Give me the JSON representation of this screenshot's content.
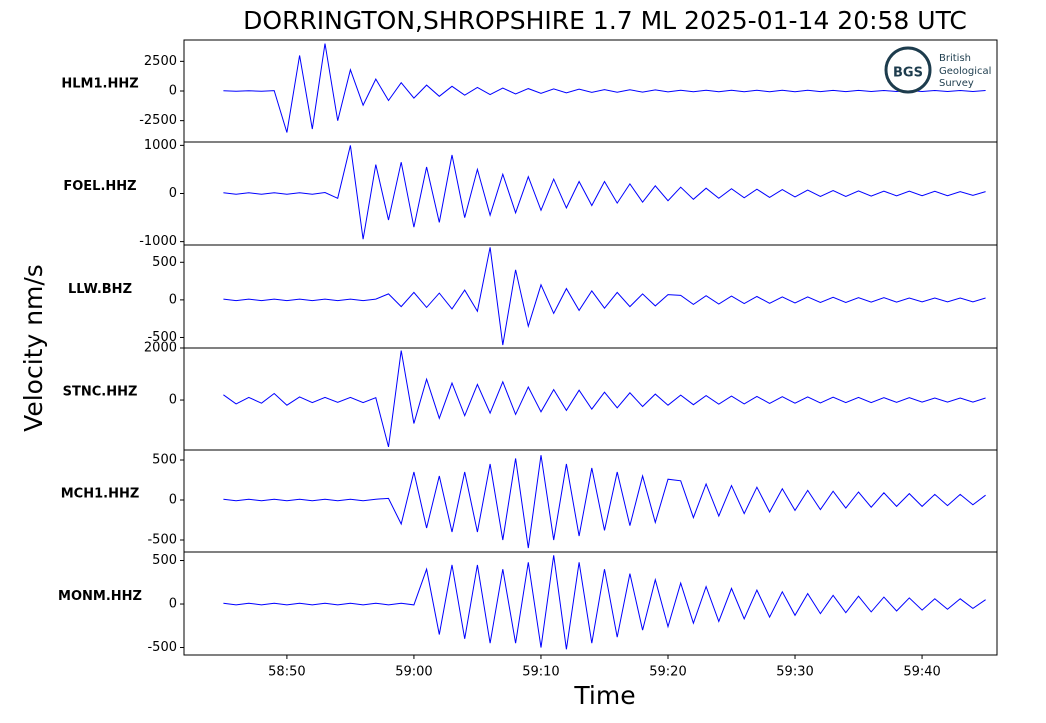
{
  "title": "DORRINGTON,SHROPSHIRE 1.7 ML   2025-01-14 20:58 UTC",
  "ylabel": "Velocity nm/s",
  "xlabel": "Time",
  "logo": {
    "abbr": "BGS",
    "lines": [
      "British",
      "Geological",
      "Survey"
    ]
  },
  "chart_data": [
    {
      "type": "line",
      "name": "HLM1.HHZ",
      "color": "#0000ff",
      "xlim": [
        41.9,
        105.9
      ],
      "ylim": [
        -4300,
        4300
      ],
      "yticks": [
        -2500,
        0,
        2500
      ],
      "x": [
        45,
        46,
        47,
        48,
        49,
        50,
        51,
        52,
        53,
        54,
        55,
        56,
        57,
        58,
        59,
        60,
        61,
        62,
        63,
        64,
        65,
        66,
        67,
        68,
        69,
        70,
        71,
        72,
        73,
        74,
        75,
        76,
        77,
        78,
        79,
        80,
        81,
        82,
        83,
        84,
        85,
        86,
        87,
        88,
        89,
        90,
        91,
        92,
        93,
        94,
        95,
        96,
        97,
        98,
        99,
        100,
        101,
        102,
        103,
        104,
        105
      ],
      "values": [
        20,
        -20,
        20,
        -20,
        30,
        -3500,
        3000,
        -3200,
        4000,
        -2500,
        1800,
        -1200,
        1000,
        -800,
        700,
        -600,
        500,
        -450,
        400,
        -350,
        300,
        -300,
        250,
        -250,
        200,
        -200,
        180,
        -150,
        150,
        -120,
        120,
        -100,
        100,
        -90,
        90,
        -80,
        70,
        -70,
        70,
        -65,
        65,
        -60,
        60,
        -60,
        55,
        -55,
        55,
        -50,
        50,
        -50,
        50,
        -45,
        45,
        -45,
        45,
        -40,
        40,
        -40,
        40,
        -40,
        40
      ]
    },
    {
      "type": "line",
      "name": "FOEL.HHZ",
      "color": "#0000ff",
      "xlim": [
        41.9,
        105.9
      ],
      "ylim": [
        -1070,
        1070
      ],
      "yticks": [
        -1000,
        0,
        1000
      ],
      "x": [
        45,
        46,
        47,
        48,
        49,
        50,
        51,
        52,
        53,
        54,
        55,
        56,
        57,
        58,
        59,
        60,
        61,
        62,
        63,
        64,
        65,
        66,
        67,
        68,
        69,
        70,
        71,
        72,
        73,
        74,
        75,
        76,
        77,
        78,
        79,
        80,
        81,
        82,
        83,
        84,
        85,
        86,
        87,
        88,
        89,
        90,
        91,
        92,
        93,
        94,
        95,
        96,
        97,
        98,
        99,
        100,
        101,
        102,
        103,
        104,
        105
      ],
      "values": [
        15,
        -15,
        15,
        -15,
        15,
        -15,
        15,
        -15,
        20,
        -100,
        1000,
        -950,
        600,
        -550,
        650,
        -700,
        550,
        -600,
        800,
        -500,
        500,
        -450,
        400,
        -400,
        350,
        -350,
        300,
        -300,
        250,
        -250,
        250,
        -200,
        200,
        -180,
        160,
        -150,
        130,
        -120,
        110,
        -100,
        100,
        -90,
        90,
        -80,
        80,
        -70,
        70,
        -60,
        60,
        -60,
        55,
        -55,
        50,
        -50,
        50,
        -45,
        45,
        -45,
        40,
        -40,
        40
      ]
    },
    {
      "type": "line",
      "name": "LLW.BHZ",
      "color": "#0000ff",
      "xlim": [
        41.9,
        105.9
      ],
      "ylim": [
        -640,
        730
      ],
      "yticks": [
        -500,
        0,
        500
      ],
      "x": [
        45,
        46,
        47,
        48,
        49,
        50,
        51,
        52,
        53,
        54,
        55,
        56,
        57,
        58,
        59,
        60,
        61,
        62,
        63,
        64,
        65,
        66,
        67,
        68,
        69,
        70,
        71,
        72,
        73,
        74,
        75,
        76,
        77,
        78,
        79,
        80,
        81,
        82,
        83,
        84,
        85,
        86,
        87,
        88,
        89,
        90,
        91,
        92,
        93,
        94,
        95,
        96,
        97,
        98,
        99,
        100,
        101,
        102,
        103,
        104,
        105
      ],
      "values": [
        10,
        -10,
        10,
        -10,
        10,
        -10,
        10,
        -10,
        10,
        -10,
        10,
        -10,
        10,
        80,
        -90,
        100,
        -100,
        90,
        -120,
        130,
        -150,
        700,
        -600,
        400,
        -350,
        200,
        -180,
        150,
        -140,
        120,
        -110,
        100,
        -90,
        80,
        -80,
        70,
        60,
        -60,
        55,
        -55,
        50,
        -50,
        45,
        -45,
        40,
        -40,
        40,
        -35,
        35,
        -35,
        30,
        -30,
        30,
        -30,
        25,
        -25,
        25,
        -25,
        25,
        -25,
        25
      ]
    },
    {
      "type": "line",
      "name": "STNC.HHZ",
      "color": "#0000ff",
      "xlim": [
        41.9,
        105.9
      ],
      "ylim": [
        -1920,
        2000
      ],
      "yticks": [
        0,
        2000
      ],
      "x": [
        45,
        46,
        47,
        48,
        49,
        50,
        51,
        52,
        53,
        54,
        55,
        56,
        57,
        58,
        59,
        60,
        61,
        62,
        63,
        64,
        65,
        66,
        67,
        68,
        69,
        70,
        71,
        72,
        73,
        74,
        75,
        76,
        77,
        78,
        79,
        80,
        81,
        82,
        83,
        84,
        85,
        86,
        87,
        88,
        89,
        90,
        91,
        92,
        93,
        94,
        95,
        96,
        97,
        98,
        99,
        100,
        101,
        102,
        103,
        104,
        105
      ],
      "values": [
        200,
        -150,
        100,
        -120,
        250,
        -200,
        120,
        -100,
        100,
        -90,
        100,
        -100,
        90,
        -1800,
        1900,
        -900,
        800,
        -700,
        650,
        -600,
        600,
        -500,
        700,
        -550,
        500,
        -450,
        400,
        -400,
        380,
        -350,
        300,
        -300,
        280,
        -250,
        230,
        -200,
        190,
        -180,
        170,
        -160,
        150,
        -150,
        140,
        -130,
        130,
        -120,
        120,
        -110,
        110,
        -100,
        100,
        -100,
        90,
        -90,
        90,
        -80,
        80,
        -80,
        80,
        -80,
        80
      ]
    },
    {
      "type": "line",
      "name": "MCH1.HHZ",
      "color": "#0000ff",
      "xlim": [
        41.9,
        105.9
      ],
      "ylim": [
        -650,
        625
      ],
      "yticks": [
        -500,
        0,
        500
      ],
      "x": [
        45,
        46,
        47,
        48,
        49,
        50,
        51,
        52,
        53,
        54,
        55,
        56,
        57,
        58,
        59,
        60,
        61,
        62,
        63,
        64,
        65,
        66,
        67,
        68,
        69,
        70,
        71,
        72,
        73,
        74,
        75,
        76,
        77,
        78,
        79,
        80,
        81,
        82,
        83,
        84,
        85,
        86,
        87,
        88,
        89,
        90,
        91,
        92,
        93,
        94,
        95,
        96,
        97,
        98,
        99,
        100,
        101,
        102,
        103,
        104,
        105
      ],
      "values": [
        10,
        -10,
        10,
        -10,
        10,
        -10,
        10,
        -10,
        10,
        -10,
        10,
        -10,
        10,
        20,
        -300,
        350,
        -350,
        300,
        -400,
        350,
        -400,
        450,
        -500,
        520,
        -600,
        560,
        -500,
        450,
        -450,
        400,
        -380,
        350,
        -320,
        300,
        -280,
        260,
        240,
        -220,
        200,
        -200,
        180,
        -170,
        160,
        -150,
        140,
        -130,
        120,
        -120,
        110,
        -100,
        100,
        -90,
        90,
        -80,
        80,
        -80,
        70,
        -70,
        70,
        -60,
        60
      ]
    },
    {
      "type": "line",
      "name": "MONM.HHZ",
      "color": "#0000ff",
      "xlim": [
        41.9,
        105.9
      ],
      "ylim": [
        -586,
        598
      ],
      "yticks": [
        -500,
        0,
        500
      ],
      "xticks": [
        {
          "value": 50,
          "label": "58:50"
        },
        {
          "value": 60,
          "label": "59:00"
        },
        {
          "value": 70,
          "label": "59:10"
        },
        {
          "value": 80,
          "label": "59:20"
        },
        {
          "value": 90,
          "label": "59:30"
        },
        {
          "value": 100,
          "label": "59:40"
        }
      ],
      "x": [
        45,
        46,
        47,
        48,
        49,
        50,
        51,
        52,
        53,
        54,
        55,
        56,
        57,
        58,
        59,
        60,
        61,
        62,
        63,
        64,
        65,
        66,
        67,
        68,
        69,
        70,
        71,
        72,
        73,
        74,
        75,
        76,
        77,
        78,
        79,
        80,
        81,
        82,
        83,
        84,
        85,
        86,
        87,
        88,
        89,
        90,
        91,
        92,
        93,
        94,
        95,
        96,
        97,
        98,
        99,
        100,
        101,
        102,
        103,
        104,
        105
      ],
      "values": [
        10,
        -10,
        10,
        -10,
        10,
        -10,
        10,
        -10,
        10,
        -10,
        10,
        -10,
        10,
        -10,
        10,
        -10,
        400,
        -350,
        450,
        -400,
        450,
        -450,
        400,
        -450,
        480,
        -500,
        560,
        -520,
        480,
        -450,
        400,
        -380,
        350,
        -300,
        280,
        -260,
        240,
        -220,
        200,
        -200,
        180,
        -170,
        160,
        -150,
        140,
        -130,
        120,
        -110,
        100,
        -100,
        90,
        -90,
        80,
        -80,
        70,
        -70,
        60,
        -60,
        60,
        -50,
        50
      ]
    }
  ]
}
